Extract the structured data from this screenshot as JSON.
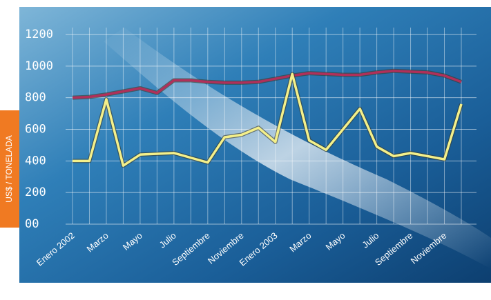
{
  "chart_data": {
    "type": "line",
    "y_label": "US$ / TONELADA",
    "categories": [
      "Enero 2002",
      null,
      "Marzo",
      null,
      "Mayo",
      null,
      "Julio",
      null,
      "Septiembre",
      null,
      "Noviembre",
      null,
      "Enero 2003",
      null,
      "Marzo",
      null,
      "Mayo",
      null,
      "Julio",
      null,
      "Septiembre",
      null,
      "Noviembre",
      null
    ],
    "series": [
      {
        "color": "#b0305a",
        "values": [
          800,
          805,
          820,
          840,
          860,
          830,
          910,
          910,
          900,
          895,
          895,
          900,
          920,
          940,
          955,
          950,
          945,
          945,
          960,
          970,
          965,
          960,
          940,
          900
        ]
      },
      {
        "color": "#f4f08a",
        "values": [
          400,
          400,
          790,
          370,
          440,
          445,
          450,
          420,
          390,
          550,
          565,
          610,
          520,
          950,
          530,
          470,
          600,
          730,
          490,
          430,
          450,
          430,
          410,
          760
        ]
      }
    ],
    "ylim": [
      0,
      1200
    ],
    "yticks": [
      {
        "value": 0,
        "label": "00"
      },
      200,
      400,
      600,
      800,
      1000,
      1200
    ],
    "grid": true
  }
}
